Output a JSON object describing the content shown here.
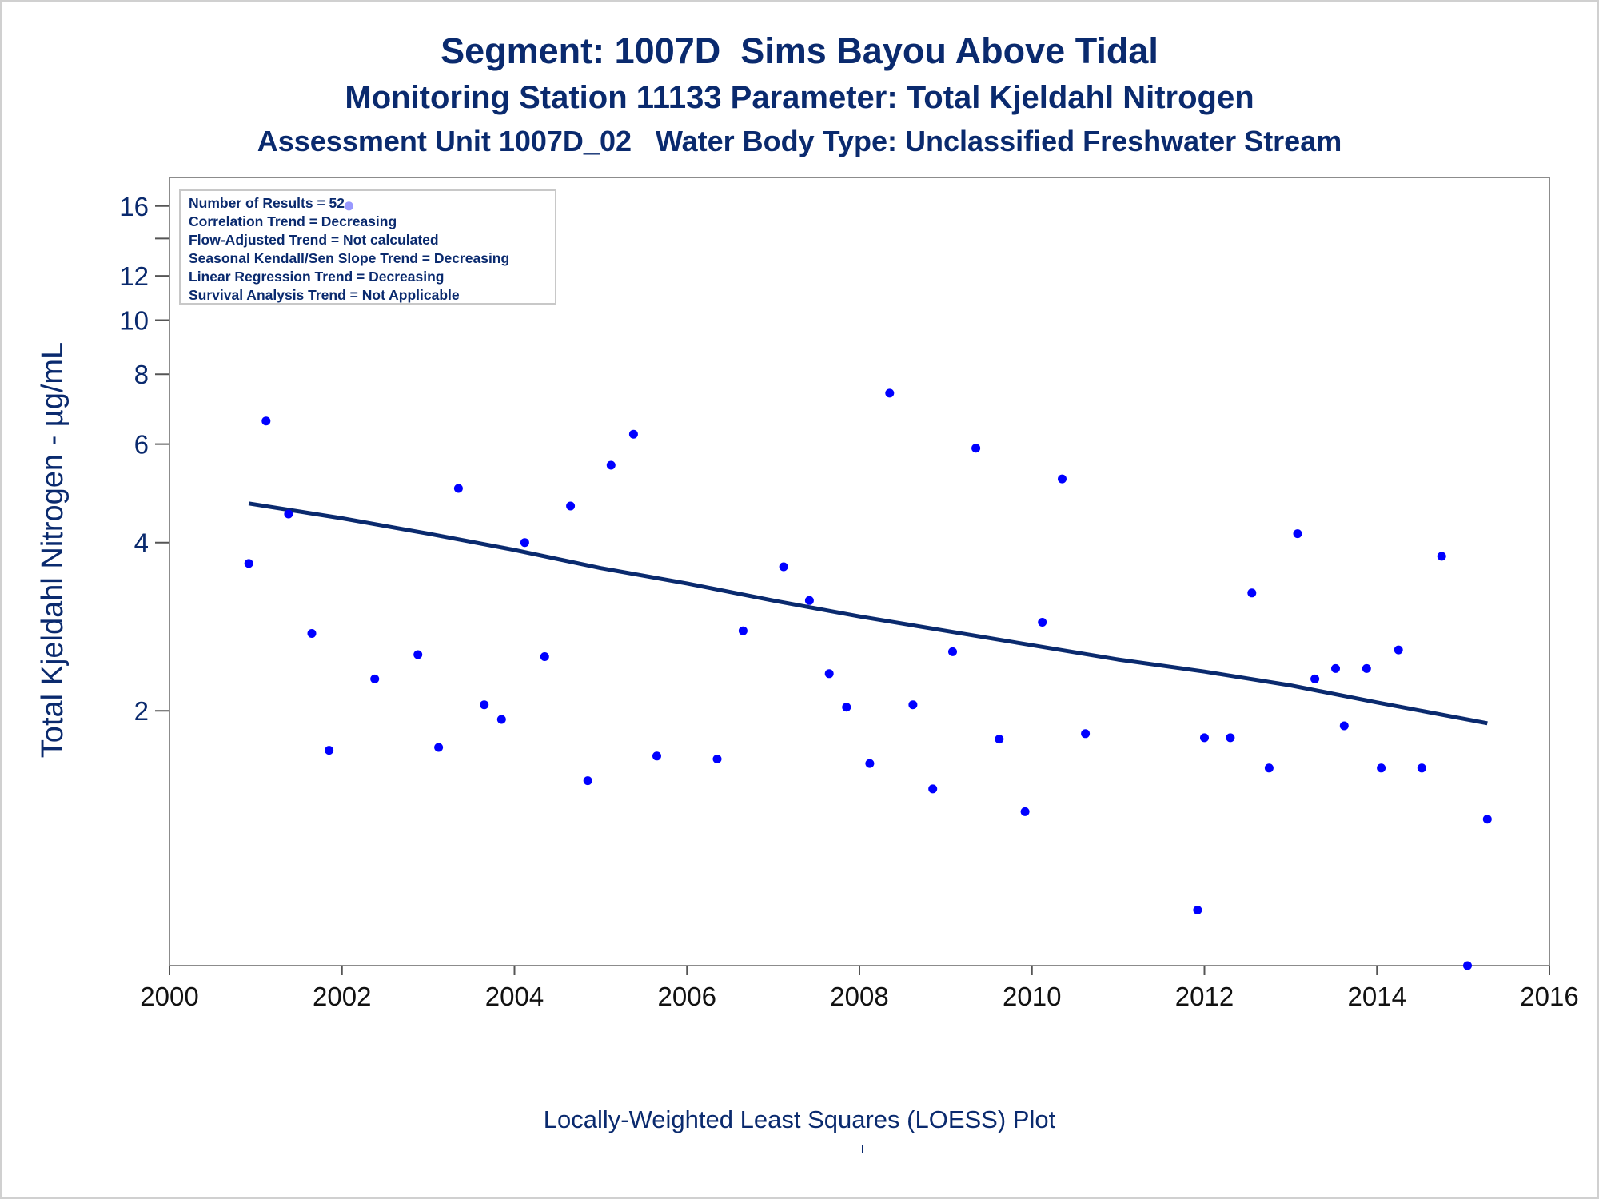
{
  "titles": {
    "line1": "Segment: 1007D  Sims Bayou Above Tidal",
    "line2": "Monitoring Station 11133 Parameter: Total Kjeldahl Nitrogen",
    "line3": "Assessment Unit 1007D_02   Water Body Type: Unclassified Freshwater Stream"
  },
  "footnote": "Locally-Weighted Least Squares (LOESS) Plot",
  "chart_data": {
    "type": "scatter",
    "ylabel": "Total Kjeldahl Nitrogen -  µg/mL",
    "xlim": [
      2000,
      2016
    ],
    "ylim": [
      0.7,
      18
    ],
    "y_scale": "log",
    "x_ticks": [
      2000,
      2002,
      2004,
      2006,
      2008,
      2010,
      2012,
      2014,
      2016
    ],
    "y_ticks": [
      2,
      4,
      6,
      8,
      10,
      12,
      16
    ],
    "y_minor_ticks": [
      14
    ],
    "point_color": "#0000ff",
    "trend_color": "#0a2a6e",
    "legend": {
      "placement": "top-left",
      "lines": [
        "Number of Results = 52",
        "Correlation Trend = Decreasing",
        "Flow-Adjusted Trend = Not calculated",
        "Seasonal Kendall/Sen Slope Trend = Decreasing",
        "Linear Regression Trend = Decreasing",
        "Survival Analysis Trend = Not Applicable"
      ]
    },
    "points": [
      {
        "x": 2000.92,
        "y": 3.67
      },
      {
        "x": 2001.12,
        "y": 6.6
      },
      {
        "x": 2001.38,
        "y": 4.5
      },
      {
        "x": 2001.65,
        "y": 2.75
      },
      {
        "x": 2001.85,
        "y": 1.7
      },
      {
        "x": 2002.08,
        "y": 16.0
      },
      {
        "x": 2002.38,
        "y": 2.28
      },
      {
        "x": 2002.88,
        "y": 2.52
      },
      {
        "x": 2003.12,
        "y": 1.72
      },
      {
        "x": 2003.35,
        "y": 5.0
      },
      {
        "x": 2003.65,
        "y": 2.05
      },
      {
        "x": 2003.85,
        "y": 1.93
      },
      {
        "x": 2004.12,
        "y": 4.0
      },
      {
        "x": 2004.35,
        "y": 2.5
      },
      {
        "x": 2004.65,
        "y": 4.65
      },
      {
        "x": 2004.85,
        "y": 1.5
      },
      {
        "x": 2005.12,
        "y": 5.5
      },
      {
        "x": 2005.38,
        "y": 6.25
      },
      {
        "x": 2005.65,
        "y": 1.66
      },
      {
        "x": 2006.35,
        "y": 1.64
      },
      {
        "x": 2006.65,
        "y": 2.78
      },
      {
        "x": 2007.12,
        "y": 3.62
      },
      {
        "x": 2007.42,
        "y": 3.15
      },
      {
        "x": 2007.65,
        "y": 2.33
      },
      {
        "x": 2007.85,
        "y": 2.03
      },
      {
        "x": 2008.12,
        "y": 1.61
      },
      {
        "x": 2008.35,
        "y": 7.4
      },
      {
        "x": 2008.62,
        "y": 2.05
      },
      {
        "x": 2008.85,
        "y": 1.45
      },
      {
        "x": 2009.08,
        "y": 2.55
      },
      {
        "x": 2009.35,
        "y": 5.9
      },
      {
        "x": 2009.62,
        "y": 1.78
      },
      {
        "x": 2009.92,
        "y": 1.32
      },
      {
        "x": 2010.12,
        "y": 2.88
      },
      {
        "x": 2010.35,
        "y": 5.2
      },
      {
        "x": 2010.62,
        "y": 1.82
      },
      {
        "x": 2011.92,
        "y": 0.88
      },
      {
        "x": 2012.0,
        "y": 1.79
      },
      {
        "x": 2012.3,
        "y": 1.79
      },
      {
        "x": 2012.55,
        "y": 3.25
      },
      {
        "x": 2012.75,
        "y": 1.58
      },
      {
        "x": 2013.08,
        "y": 4.15
      },
      {
        "x": 2013.28,
        "y": 2.28
      },
      {
        "x": 2013.52,
        "y": 2.38
      },
      {
        "x": 2013.62,
        "y": 1.88
      },
      {
        "x": 2013.88,
        "y": 2.38
      },
      {
        "x": 2014.05,
        "y": 1.58
      },
      {
        "x": 2014.25,
        "y": 2.57
      },
      {
        "x": 2014.52,
        "y": 1.58
      },
      {
        "x": 2014.75,
        "y": 3.78
      },
      {
        "x": 2015.05,
        "y": 0.7
      },
      {
        "x": 2015.28,
        "y": 1.28
      }
    ],
    "trend_line": [
      {
        "x": 2000.92,
        "y": 4.7
      },
      {
        "x": 2002.0,
        "y": 4.42
      },
      {
        "x": 2003.0,
        "y": 4.15
      },
      {
        "x": 2004.0,
        "y": 3.88
      },
      {
        "x": 2005.0,
        "y": 3.6
      },
      {
        "x": 2006.0,
        "y": 3.38
      },
      {
        "x": 2007.0,
        "y": 3.15
      },
      {
        "x": 2008.0,
        "y": 2.95
      },
      {
        "x": 2009.0,
        "y": 2.78
      },
      {
        "x": 2010.0,
        "y": 2.62
      },
      {
        "x": 2011.0,
        "y": 2.47
      },
      {
        "x": 2012.0,
        "y": 2.35
      },
      {
        "x": 2013.0,
        "y": 2.22
      },
      {
        "x": 2014.0,
        "y": 2.07
      },
      {
        "x": 2015.28,
        "y": 1.9
      }
    ]
  }
}
